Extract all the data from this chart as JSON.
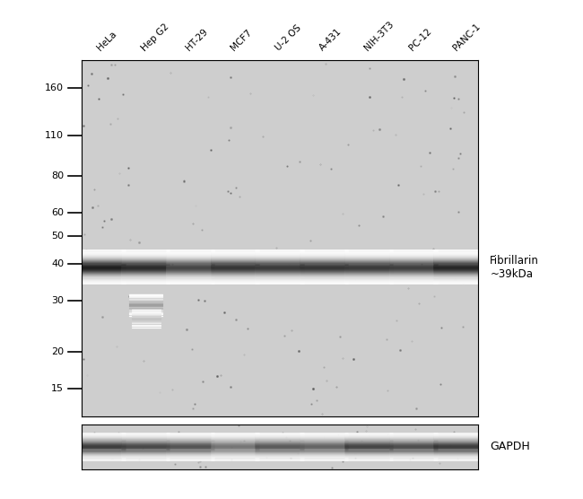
{
  "sample_labels": [
    "HeLa",
    "Hep G2",
    "HT-29",
    "MCF7",
    "U-2 OS",
    "A-431",
    "NIH-3T3",
    "PC-12",
    "PANC-1"
  ],
  "mw_markers": [
    160,
    110,
    80,
    60,
    50,
    40,
    30,
    20,
    15
  ],
  "fibrillarin_label": "Fibrillarin\n~39kDa",
  "gapdh_label": "GAPDH",
  "bg_color": "#cecece",
  "fig_bg": "#ffffff",
  "band_intensities": [
    0.92,
    0.87,
    0.76,
    0.83,
    0.81,
    0.83,
    0.81,
    0.79,
    0.89
  ],
  "gapdh_intensities": [
    0.85,
    0.8,
    0.75,
    0.6,
    0.72,
    0.68,
    0.82,
    0.78,
    0.85
  ],
  "hep_g2_extra_band_kda": 29,
  "hep_g2_extra_band_intensity": 0.45,
  "hep_g2_extra_band2_kda": 26,
  "hep_g2_extra_band2_intensity": 0.3,
  "mw_log_min": 12,
  "mw_log_max": 200
}
